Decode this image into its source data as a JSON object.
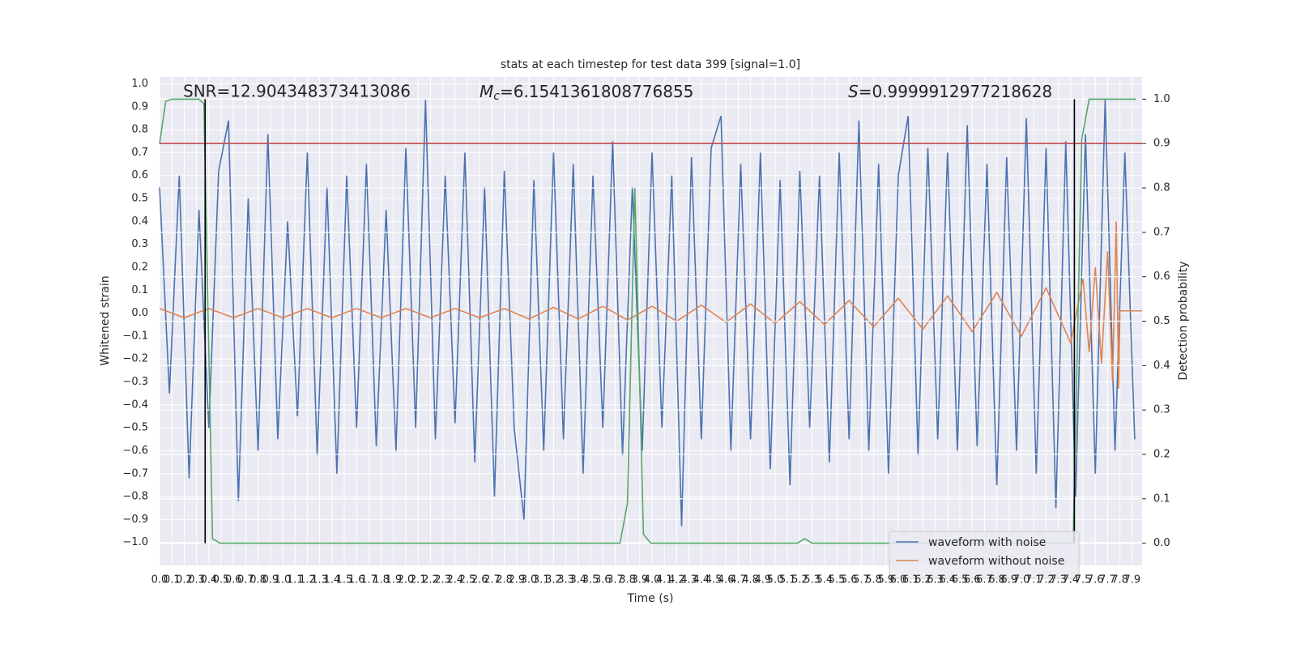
{
  "chart_data": {
    "type": "line",
    "title": "stats at each timestep for test data 399 [signal=1.0]",
    "xlabel": "Time (s)",
    "ylabel": "Whitened strain",
    "y2label": "Detection probability",
    "annotations": [
      {
        "text": "SNR=12.904348373413086"
      },
      {
        "symbol": "M",
        "sub": "c",
        "text": "=6.1541361808776855"
      },
      {
        "symbol": "S",
        "text": "=0.9999912977218628"
      }
    ],
    "legend": "lower right",
    "grid": true,
    "background": "#eaeaf2",
    "xlim": [
      0,
      7.98
    ],
    "ylim": [
      -1.1,
      1.03
    ],
    "y2lim": [
      -0.05,
      1.05
    ],
    "xticks": [
      {
        "value": 0,
        "label": "0.0"
      },
      0.1,
      0.2,
      0.3,
      0.4,
      0.5,
      0.6,
      0.7,
      0.8,
      0.9,
      {
        "value": 1,
        "label": "1.0"
      },
      1.1,
      1.2,
      1.3,
      1.4,
      1.5,
      1.6,
      1.7,
      1.8,
      1.9,
      {
        "value": 2,
        "label": "2.0"
      },
      2.1,
      2.2,
      2.3,
      2.4,
      2.5,
      2.6,
      2.7,
      2.8,
      2.9,
      {
        "value": 3,
        "label": "3.0"
      },
      3.1,
      3.2,
      3.3,
      3.4,
      3.5,
      3.6,
      3.7,
      3.8,
      3.9,
      {
        "value": 4,
        "label": "4.0"
      },
      4.1,
      4.2,
      4.3,
      4.4,
      4.5,
      4.6,
      4.7,
      4.8,
      4.9,
      {
        "value": 5,
        "label": "5.0"
      },
      5.1,
      5.2,
      5.3,
      5.4,
      5.5,
      5.6,
      5.7,
      5.8,
      5.9,
      {
        "value": 6,
        "label": "6.0"
      },
      6.1,
      6.2,
      6.3,
      6.4,
      6.5,
      6.6,
      6.7,
      6.8,
      6.9,
      {
        "value": 7,
        "label": "7.0"
      },
      7.1,
      7.2,
      7.3,
      7.4,
      7.5,
      7.6,
      7.7,
      7.8,
      7.9
    ],
    "yticks": [
      {
        "value": -1,
        "label": "−1.0"
      },
      {
        "value": -0.9,
        "label": "−0.9"
      },
      {
        "value": -0.8,
        "label": "−0.8"
      },
      {
        "value": -0.7,
        "label": "−0.7"
      },
      {
        "value": -0.6,
        "label": "−0.6"
      },
      {
        "value": -0.5,
        "label": "−0.5"
      },
      {
        "value": -0.4,
        "label": "−0.4"
      },
      {
        "value": -0.3,
        "label": "−0.3"
      },
      {
        "value": -0.2,
        "label": "−0.2"
      },
      {
        "value": -0.1,
        "label": "−0.1"
      },
      {
        "value": 0,
        "label": "0.0"
      },
      0.1,
      0.2,
      0.3,
      0.4,
      0.5,
      0.6,
      0.7,
      0.8,
      0.9,
      {
        "value": 1,
        "label": "1.0"
      }
    ],
    "y2ticks": [
      {
        "value": 0,
        "label": "0.0"
      },
      0.1,
      0.2,
      0.3,
      0.4,
      0.5,
      0.6,
      0.7,
      0.8,
      0.9,
      {
        "value": 1,
        "label": "1.0"
      }
    ],
    "series": [
      {
        "name": "waveform with noise",
        "color": "#4c72b0",
        "x": [
          0,
          0.08,
          0.16,
          0.24,
          0.32,
          0.4,
          0.48,
          0.56,
          0.64,
          0.72,
          0.8,
          0.88,
          0.96,
          1.04,
          1.12,
          1.2,
          1.28,
          1.36,
          1.44,
          1.52,
          1.6,
          1.68,
          1.76,
          1.84,
          1.92,
          2,
          2.08,
          2.16,
          2.24,
          2.32,
          2.4,
          2.48,
          2.56,
          2.64,
          2.72,
          2.8,
          2.88,
          2.96,
          3.04,
          3.12,
          3.2,
          3.28,
          3.36,
          3.44,
          3.52,
          3.6,
          3.68,
          3.76,
          3.84,
          3.92,
          4,
          4.08,
          4.16,
          4.24,
          4.32,
          4.4,
          4.48,
          4.56,
          4.64,
          4.72,
          4.8,
          4.88,
          4.96,
          5.04,
          5.12,
          5.2,
          5.28,
          5.36,
          5.44,
          5.52,
          5.6,
          5.68,
          5.76,
          5.84,
          5.92,
          6,
          6.08,
          6.16,
          6.24,
          6.32,
          6.4,
          6.48,
          6.56,
          6.64,
          6.72,
          6.8,
          6.88,
          6.96,
          7.04,
          7.12,
          7.2,
          7.28,
          7.36,
          7.44,
          7.52,
          7.6,
          7.68,
          7.76,
          7.84,
          7.92
        ],
        "values": [
          0.55,
          -0.35,
          0.6,
          -0.72,
          0.45,
          -0.5,
          0.62,
          0.84,
          -0.82,
          0.5,
          -0.6,
          0.78,
          -0.55,
          0.4,
          -0.45,
          0.7,
          -0.62,
          0.55,
          -0.7,
          0.6,
          -0.5,
          0.65,
          -0.58,
          0.45,
          -0.6,
          0.72,
          -0.5,
          0.93,
          -0.55,
          0.6,
          -0.48,
          0.7,
          -0.65,
          0.55,
          -0.8,
          0.62,
          -0.5,
          -0.9,
          0.58,
          -0.6,
          0.7,
          -0.55,
          0.65,
          -0.7,
          0.6,
          -0.5,
          0.75,
          -0.62,
          0.55,
          -0.6,
          0.7,
          -0.5,
          0.6,
          -0.93,
          0.68,
          -0.55,
          0.72,
          0.86,
          -0.6,
          0.65,
          -0.55,
          0.7,
          -0.68,
          0.58,
          -0.75,
          0.62,
          -0.5,
          0.6,
          -0.65,
          0.7,
          -0.55,
          0.84,
          -0.6,
          0.65,
          -0.7,
          0.6,
          0.86,
          -0.62,
          0.72,
          -0.55,
          0.7,
          -0.6,
          0.82,
          -0.58,
          0.65,
          -0.75,
          0.68,
          -0.6,
          0.85,
          -0.7,
          0.72,
          -0.85,
          0.75,
          -0.8,
          0.78,
          -0.7,
          0.93,
          -0.6,
          0.7,
          -0.55
        ]
      },
      {
        "name": "waveform without noise",
        "color": "#dd8452",
        "x": [
          0,
          0.2,
          0.4,
          0.6,
          0.8,
          1,
          1.2,
          1.4,
          1.6,
          1.8,
          2,
          2.2,
          2.4,
          2.6,
          2.8,
          3,
          3.2,
          3.4,
          3.6,
          3.8,
          4,
          4.2,
          4.4,
          4.6,
          4.8,
          5,
          5.2,
          5.4,
          5.6,
          5.8,
          6,
          6.2,
          6.4,
          6.6,
          6.8,
          7,
          7.2,
          7.4,
          7.5,
          7.55,
          7.6,
          7.65,
          7.7,
          7.74,
          7.77,
          7.79,
          7.8,
          7.98
        ],
        "values": [
          0.02,
          -0.02,
          0.02,
          -0.02,
          0.02,
          -0.02,
          0.02,
          -0.02,
          0.02,
          -0.02,
          0.02,
          -0.02,
          0.02,
          -0.02,
          0.02,
          -0.025,
          0.025,
          -0.025,
          0.03,
          -0.03,
          0.03,
          -0.035,
          0.035,
          -0.04,
          0.04,
          -0.045,
          0.05,
          -0.05,
          0.055,
          -0.06,
          0.065,
          -0.07,
          0.075,
          -0.08,
          0.09,
          -0.1,
          0.11,
          -0.13,
          0.15,
          -0.17,
          0.2,
          -0.22,
          0.27,
          -0.3,
          0.4,
          -0.33,
          0.01,
          0.01
        ]
      },
      {
        "color": "#55a868",
        "axis": "y2",
        "x": [
          0,
          0.05,
          0.1,
          0.32,
          0.36,
          0.43,
          0.49,
          3.74,
          3.8,
          3.86,
          3.93,
          3.99,
          5.18,
          5.24,
          5.3,
          7.42,
          7.49,
          7.55,
          7.93
        ],
        "values": [
          0.9,
          0.995,
          1,
          1,
          0.99,
          0.01,
          0,
          0,
          0.09,
          0.8,
          0.02,
          0,
          0,
          0.01,
          0,
          0,
          0.91,
          1,
          1
        ]
      }
    ],
    "hlines": [
      {
        "axis": "y2",
        "y": 0.9,
        "color": "#c44e52"
      }
    ],
    "vlines": [
      {
        "axis": "y2",
        "x": 0.37,
        "ymin": 0,
        "ymax": 1,
        "color": "#000000"
      },
      {
        "axis": "y2",
        "x": 7.43,
        "ymin": 0,
        "ymax": 1,
        "color": "#000000"
      }
    ]
  }
}
